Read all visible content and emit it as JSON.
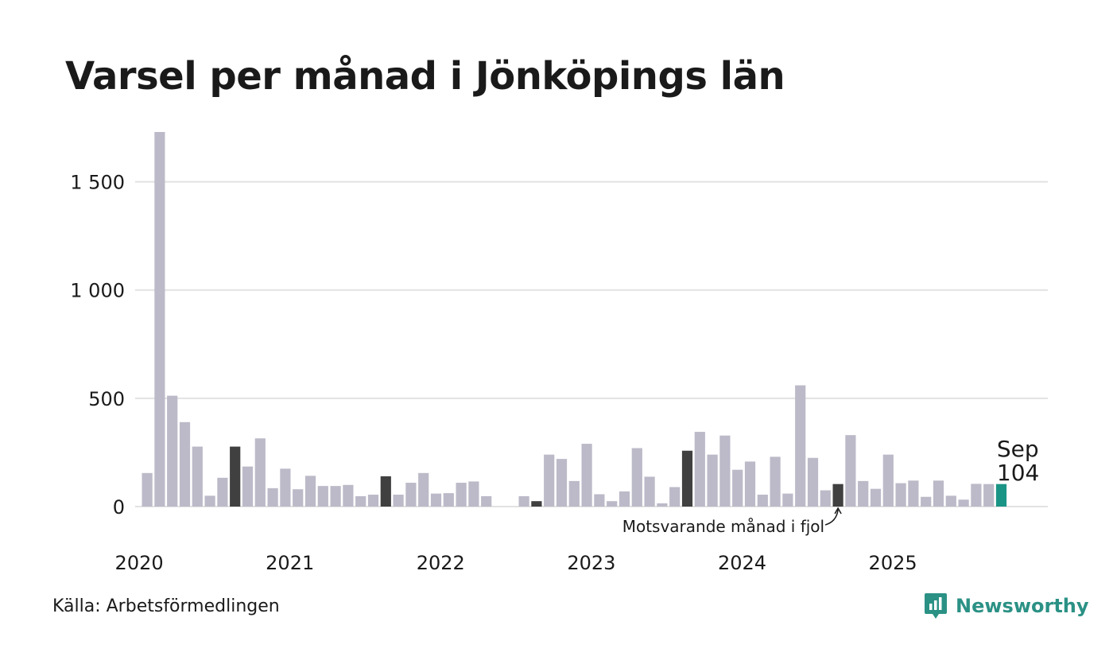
{
  "chart_data": {
    "type": "bar",
    "title": "Varsel per månad i Jönköpings län",
    "xlabel": "",
    "ylabel": "",
    "ylim": [
      0,
      1730
    ],
    "yticks": [
      0,
      500,
      1000,
      1500
    ],
    "ytick_labels": [
      "0",
      "500",
      "1 000",
      "1 500"
    ],
    "year_labels": [
      "2020",
      "2021",
      "2022",
      "2023",
      "2024",
      "2025"
    ],
    "year_starts": [
      0,
      12,
      24,
      36,
      48,
      60
    ],
    "categories": [
      "2020-01",
      "2020-02",
      "2020-03",
      "2020-04",
      "2020-05",
      "2020-06",
      "2020-07",
      "2020-08",
      "2020-09",
      "2020-10",
      "2020-11",
      "2020-12",
      "2021-01",
      "2021-02",
      "2021-03",
      "2021-04",
      "2021-05",
      "2021-06",
      "2021-07",
      "2021-08",
      "2021-09",
      "2021-10",
      "2021-11",
      "2021-12",
      "2022-01",
      "2022-02",
      "2022-03",
      "2022-04",
      "2022-05",
      "2022-06",
      "2022-07",
      "2022-08",
      "2022-09",
      "2022-10",
      "2022-11",
      "2022-12",
      "2023-01",
      "2023-02",
      "2023-03",
      "2023-04",
      "2023-05",
      "2023-06",
      "2023-07",
      "2023-08",
      "2023-09",
      "2023-10",
      "2023-11",
      "2023-12",
      "2024-01",
      "2024-02",
      "2024-03",
      "2024-04",
      "2024-05",
      "2024-06",
      "2024-07",
      "2024-08",
      "2024-09",
      "2024-10",
      "2024-11",
      "2024-12",
      "2025-01",
      "2025-02",
      "2025-03",
      "2025-04",
      "2025-05",
      "2025-06",
      "2025-07",
      "2025-08",
      "2025-09"
    ],
    "values": [
      155,
      1730,
      512,
      390,
      277,
      50,
      133,
      277,
      185,
      315,
      85,
      175,
      80,
      142,
      95,
      95,
      100,
      48,
      55,
      140,
      55,
      110,
      155,
      60,
      62,
      110,
      116,
      48,
      0,
      0,
      48,
      25,
      240,
      220,
      118,
      290,
      57,
      25,
      70,
      270,
      138,
      15,
      90,
      258,
      345,
      240,
      328,
      170,
      208,
      55,
      230,
      60,
      560,
      225,
      75,
      104,
      330,
      118,
      82,
      240,
      108,
      120,
      45,
      120,
      50,
      32,
      105,
      104,
      104
    ],
    "highlight_prior_year": [
      7,
      19,
      31,
      43,
      55
    ],
    "current_index": 68,
    "colors": {
      "bar": "#bcbac8",
      "prior_year": "#404040",
      "current": "#1a9485",
      "grid": "#e2e2e2",
      "text": "#1a1a1a"
    },
    "current_label": {
      "month": "Sep",
      "value": "104"
    },
    "annotation": "Motsvarande månad i fjol"
  },
  "source": "Källa: Arbetsförmedlingen",
  "brand": {
    "name": "Newsworthy",
    "icon": "newsworthy-logo-icon",
    "color": "#2b9185"
  }
}
